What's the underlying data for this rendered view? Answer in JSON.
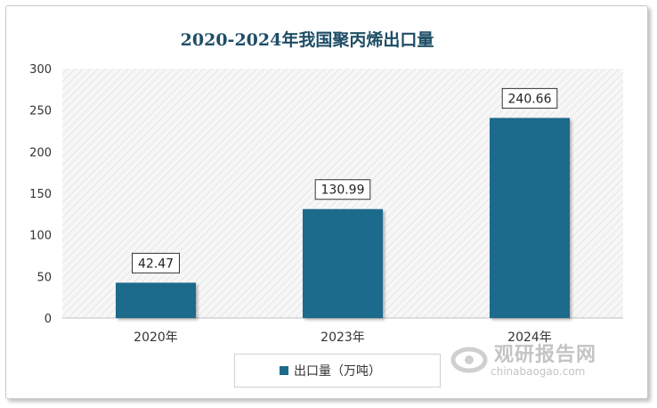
{
  "chart_data": {
    "type": "bar",
    "title": "2020-2024年我国聚丙烯出口量",
    "categories": [
      "2020年",
      "2023年",
      "2024年"
    ],
    "series": [
      {
        "name": "出口量（万吨）",
        "values": [
          42.47,
          130.99,
          240.66
        ]
      }
    ],
    "data_labels": [
      "42.47",
      "130.99",
      "240.66"
    ],
    "yticks": [
      "0",
      "50",
      "100",
      "150",
      "200",
      "250",
      "300"
    ],
    "ylim": [
      0,
      300
    ],
    "legend_position": "bottom",
    "bar_color": "#1c6b8c",
    "plot_background": "hatched-light-gray"
  },
  "watermark": {
    "name_cn": "观研报告网",
    "url": "chinabaogao.com"
  }
}
